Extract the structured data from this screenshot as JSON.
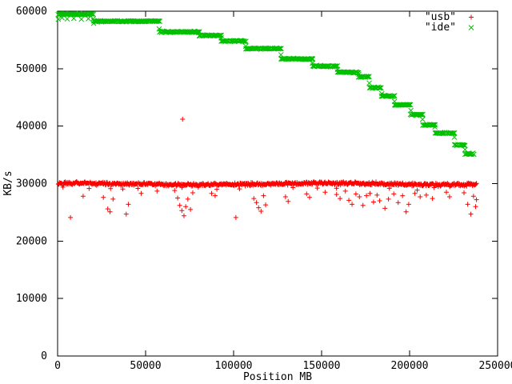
{
  "chart_data": {
    "type": "scatter",
    "title": "",
    "xlabel": "Position MB",
    "ylabel": "KB/s",
    "xlim": [
      0,
      250000
    ],
    "ylim": [
      0,
      60000
    ],
    "xticks": [
      0,
      50000,
      100000,
      150000,
      200000,
      250000
    ],
    "yticks": [
      0,
      10000,
      20000,
      30000,
      40000,
      50000,
      60000
    ],
    "grid": false,
    "border_box": true,
    "tick_style": "inward-mirrored",
    "legend_position": "top-right-inside",
    "background_color": "#ffffff",
    "frame_color": "#000000",
    "seed": 1337,
    "series": [
      {
        "name": "usb",
        "label": "\"usb\"",
        "marker": "plus",
        "color": "#ff0000",
        "baseline": {
          "y": 29950,
          "x_start": 400,
          "x_end": 238000,
          "x_step": 330,
          "noise_amp": 380,
          "dip_chance": 0.03,
          "dip_extra": 900
        },
        "outliers": [
          [
            7300,
            24100
          ],
          [
            14500,
            27800
          ],
          [
            26000,
            27600
          ],
          [
            28500,
            25600
          ],
          [
            29800,
            25100
          ],
          [
            31500,
            27300
          ],
          [
            39000,
            24700
          ],
          [
            40200,
            26400
          ],
          [
            47500,
            28300
          ],
          [
            56500,
            28700
          ],
          [
            66500,
            28800
          ],
          [
            68200,
            27500
          ],
          [
            69400,
            26200
          ],
          [
            70600,
            25300
          ],
          [
            71800,
            24400
          ],
          [
            72800,
            26000
          ],
          [
            74000,
            27300
          ],
          [
            75500,
            25500
          ],
          [
            76800,
            28400
          ],
          [
            87500,
            28300
          ],
          [
            89500,
            27900
          ],
          [
            101300,
            24100
          ],
          [
            111500,
            27400
          ],
          [
            113000,
            26700
          ],
          [
            114200,
            25800
          ],
          [
            115600,
            25200
          ],
          [
            117000,
            27900
          ],
          [
            118200,
            26300
          ],
          [
            129500,
            27700
          ],
          [
            131000,
            26900
          ],
          [
            141500,
            28200
          ],
          [
            143200,
            27600
          ],
          [
            152000,
            28500
          ],
          [
            158500,
            28100
          ],
          [
            160500,
            27400
          ],
          [
            163500,
            28700
          ],
          [
            165500,
            27100
          ],
          [
            167300,
            26400
          ],
          [
            169500,
            28200
          ],
          [
            171500,
            27700
          ],
          [
            173500,
            26200
          ],
          [
            175500,
            27900
          ],
          [
            177500,
            28300
          ],
          [
            179500,
            26800
          ],
          [
            181500,
            28000
          ],
          [
            183000,
            27000
          ],
          [
            186000,
            25700
          ],
          [
            188000,
            27300
          ],
          [
            191000,
            28200
          ],
          [
            193500,
            26700
          ],
          [
            196000,
            27900
          ],
          [
            198000,
            25100
          ],
          [
            199500,
            26400
          ],
          [
            203000,
            28300
          ],
          [
            206000,
            27700
          ],
          [
            209500,
            28000
          ],
          [
            213000,
            27400
          ],
          [
            220900,
            28500
          ],
          [
            222700,
            27700
          ],
          [
            230900,
            28400
          ],
          [
            233000,
            26400
          ],
          [
            234800,
            24700
          ],
          [
            236300,
            27800
          ],
          [
            237500,
            26000
          ],
          [
            238000,
            27200
          ]
        ],
        "high_outliers": [
          [
            71000,
            41200
          ]
        ]
      },
      {
        "name": "ide",
        "label": "\"ide\"",
        "marker": "cross",
        "color": "#00c000",
        "point_spacing": 500,
        "jitter": 130,
        "steps": [
          {
            "x1": 300,
            "x2": 20500,
            "y": 59500
          },
          {
            "x1": 20500,
            "x2": 58000,
            "y": 58250
          },
          {
            "x1": 58000,
            "x2": 80500,
            "y": 56400
          },
          {
            "x1": 80500,
            "x2": 93000,
            "y": 55800
          },
          {
            "x1": 93000,
            "x2": 107000,
            "y": 54800
          },
          {
            "x1": 107000,
            "x2": 127000,
            "y": 53500
          },
          {
            "x1": 127000,
            "x2": 145000,
            "y": 51700
          },
          {
            "x1": 145000,
            "x2": 159000,
            "y": 50450
          },
          {
            "x1": 159000,
            "x2": 171000,
            "y": 49350
          },
          {
            "x1": 171000,
            "x2": 177300,
            "y": 48600
          },
          {
            "x1": 177300,
            "x2": 184000,
            "y": 46650
          },
          {
            "x1": 184000,
            "x2": 191500,
            "y": 45250
          },
          {
            "x1": 191500,
            "x2": 200500,
            "y": 43700
          },
          {
            "x1": 200500,
            "x2": 207500,
            "y": 42000
          },
          {
            "x1": 207500,
            "x2": 214500,
            "y": 40200
          },
          {
            "x1": 214500,
            "x2": 225500,
            "y": 38800
          },
          {
            "x1": 225500,
            "x2": 231500,
            "y": 36700
          },
          {
            "x1": 231500,
            "x2": 236800,
            "y": 35200
          }
        ],
        "strays": [
          [
            400,
            58600
          ],
          [
            2500,
            58850
          ],
          [
            5500,
            58650
          ],
          [
            9200,
            58750
          ],
          [
            13500,
            58600
          ],
          [
            17500,
            58700
          ],
          [
            20500,
            57900
          ]
        ]
      }
    ]
  }
}
